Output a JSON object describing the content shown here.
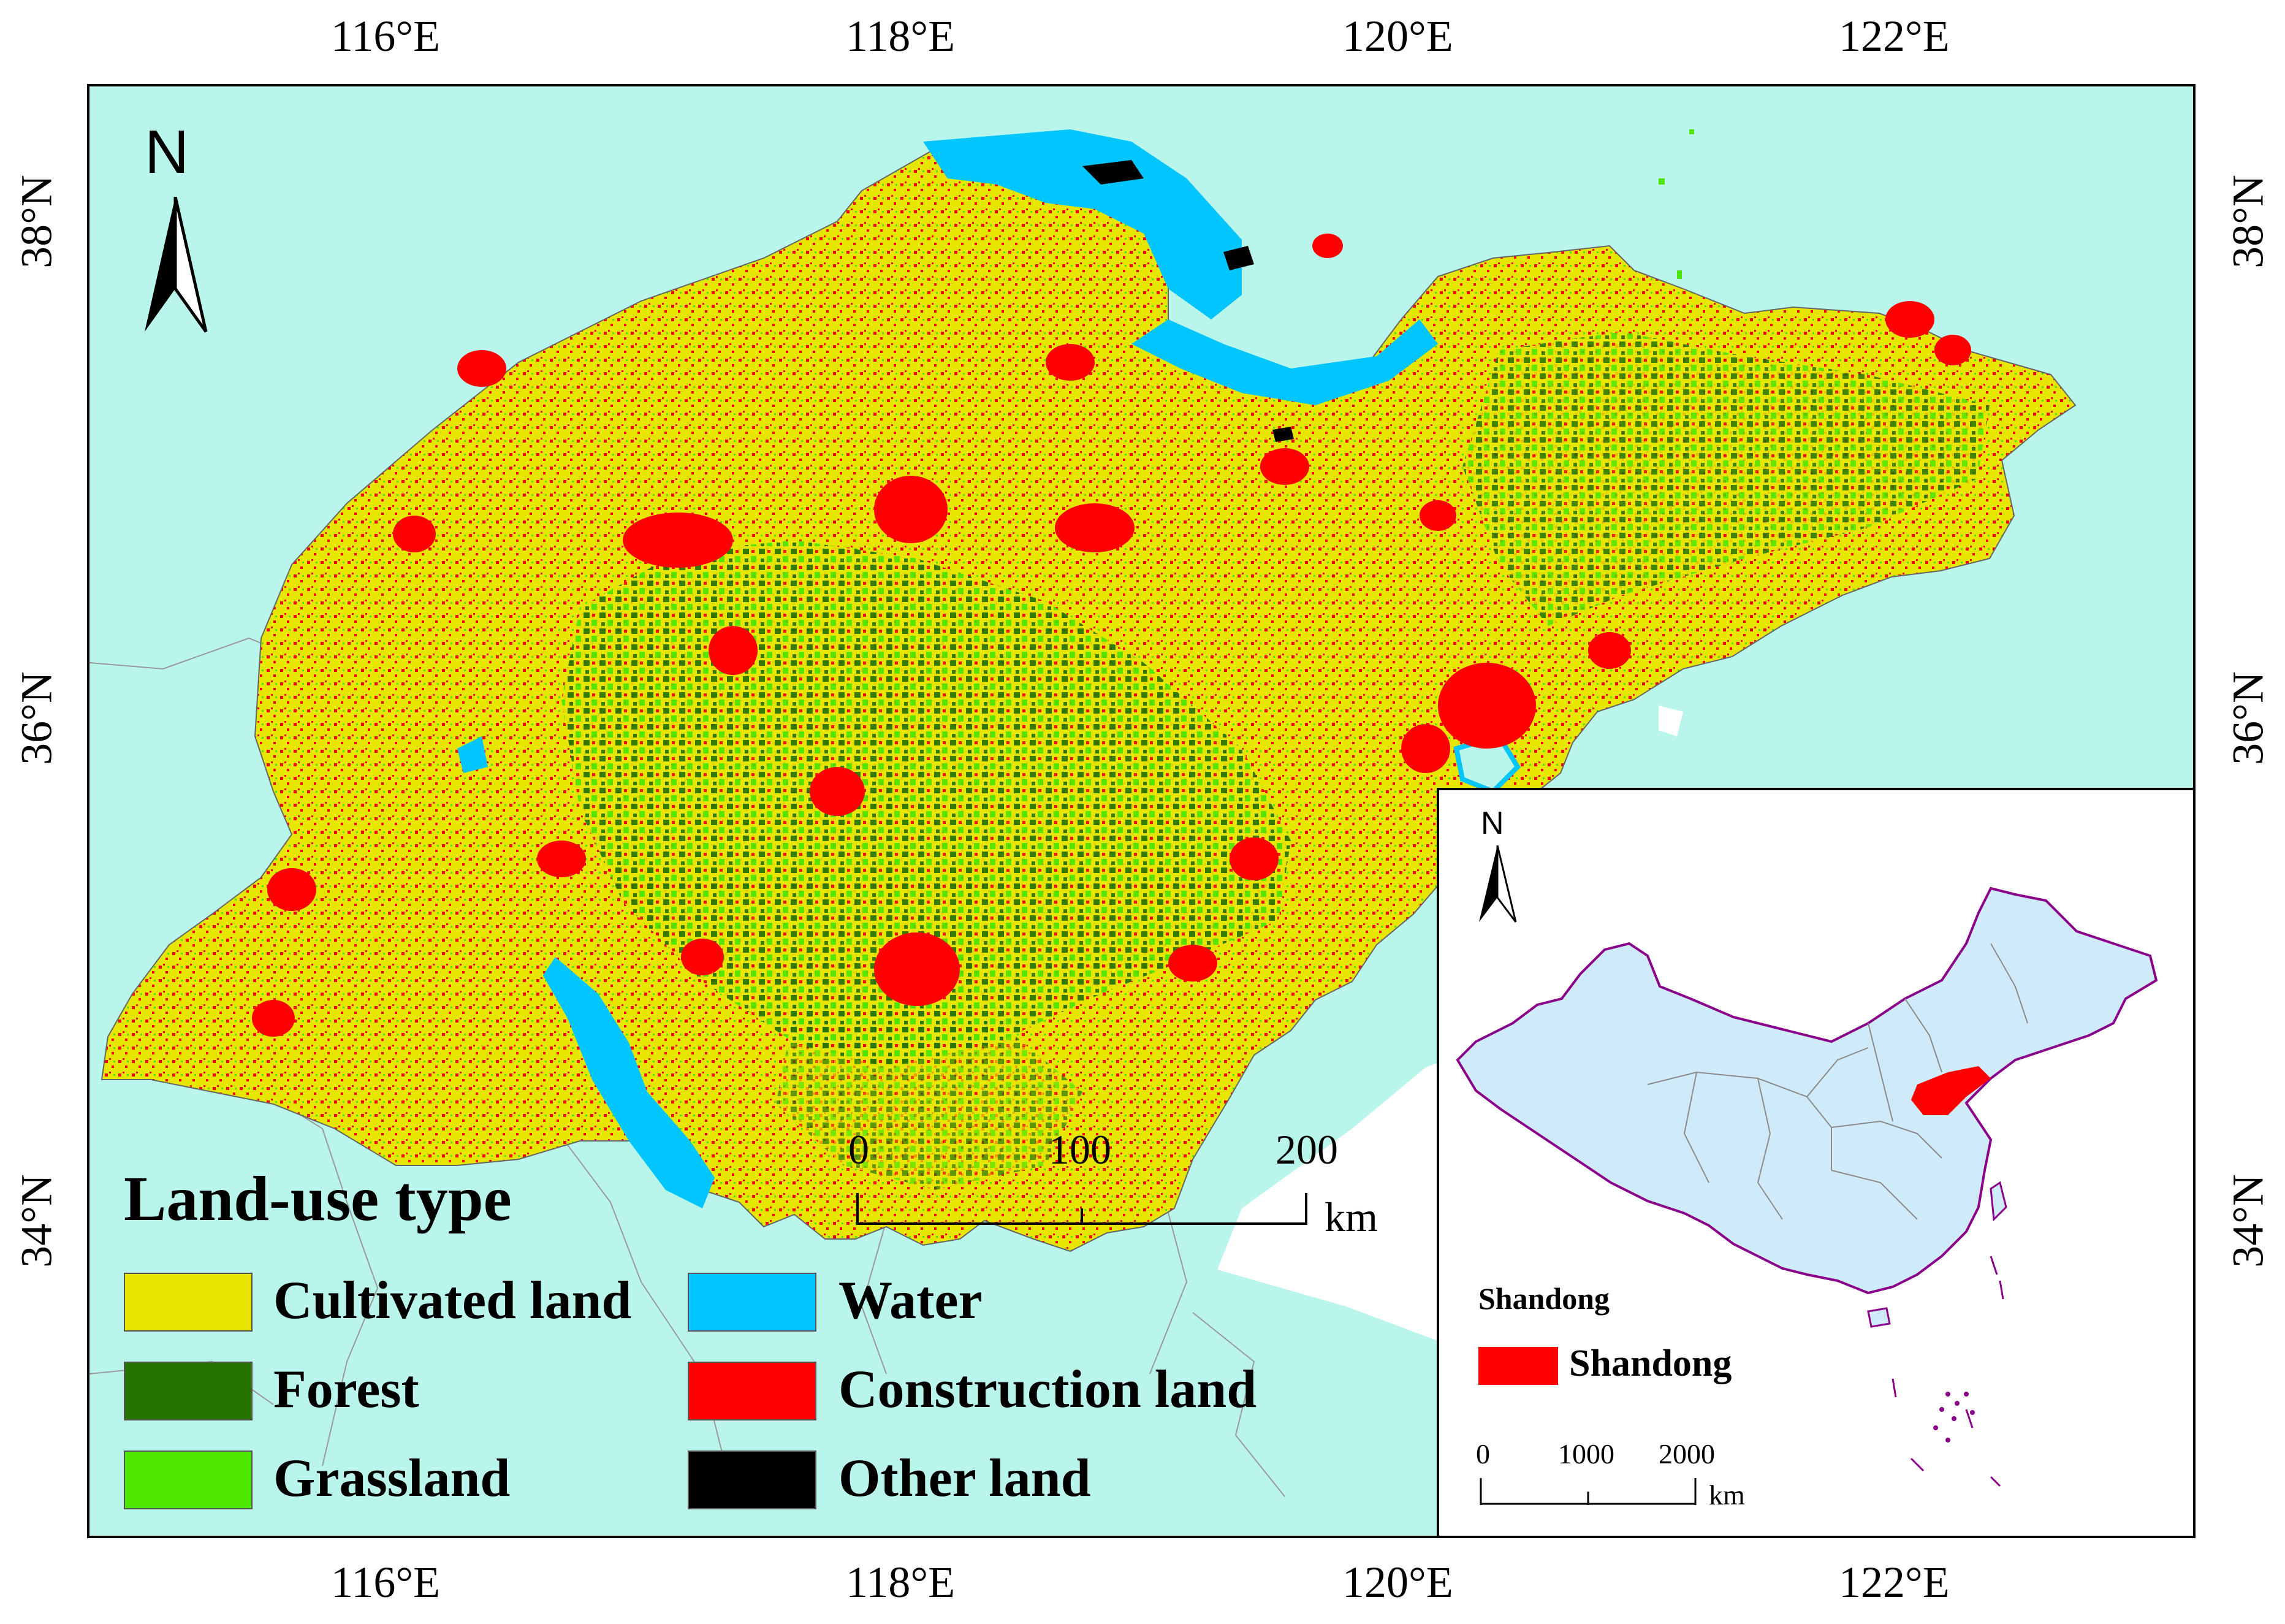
{
  "graticule": {
    "longitudes": [
      "116°E",
      "118°E",
      "120°E",
      "122°E"
    ],
    "latitudes_left": [
      "38°N",
      "36°N",
      "34°N"
    ],
    "latitudes_right": [
      "38°N",
      "36°N",
      "34°N"
    ]
  },
  "north_arrow": {
    "label": "N"
  },
  "legend": {
    "title": "Land-use type",
    "items": [
      {
        "label": "Cultivated land",
        "color": "#E6E600"
      },
      {
        "label": "Forest",
        "color": "#267300"
      },
      {
        "label": "Grassland",
        "color": "#4CE600"
      },
      {
        "label": "Water",
        "color": "#00C5FF"
      },
      {
        "label": "Construction land",
        "color": "#FF0000"
      },
      {
        "label": "Other land",
        "color": "#000000"
      }
    ]
  },
  "scale_bar": {
    "ticks": [
      "0",
      "100",
      "200"
    ],
    "unit": "km"
  },
  "inset": {
    "north_label": "N",
    "legend_title": "Shandong",
    "legend_item": "Shandong",
    "highlight_color": "#FF0000",
    "scale_ticks": [
      "0",
      "1000",
      "2000"
    ],
    "scale_unit": "km"
  },
  "colors": {
    "sea": "#B9F5EA",
    "cultivated": "#E6E600",
    "forest": "#267300",
    "grassland": "#4CE600",
    "water": "#00C5FF",
    "construction": "#FF0000",
    "other": "#000000",
    "china_fill": "#CFEAF8",
    "china_border": "#8B008B"
  }
}
